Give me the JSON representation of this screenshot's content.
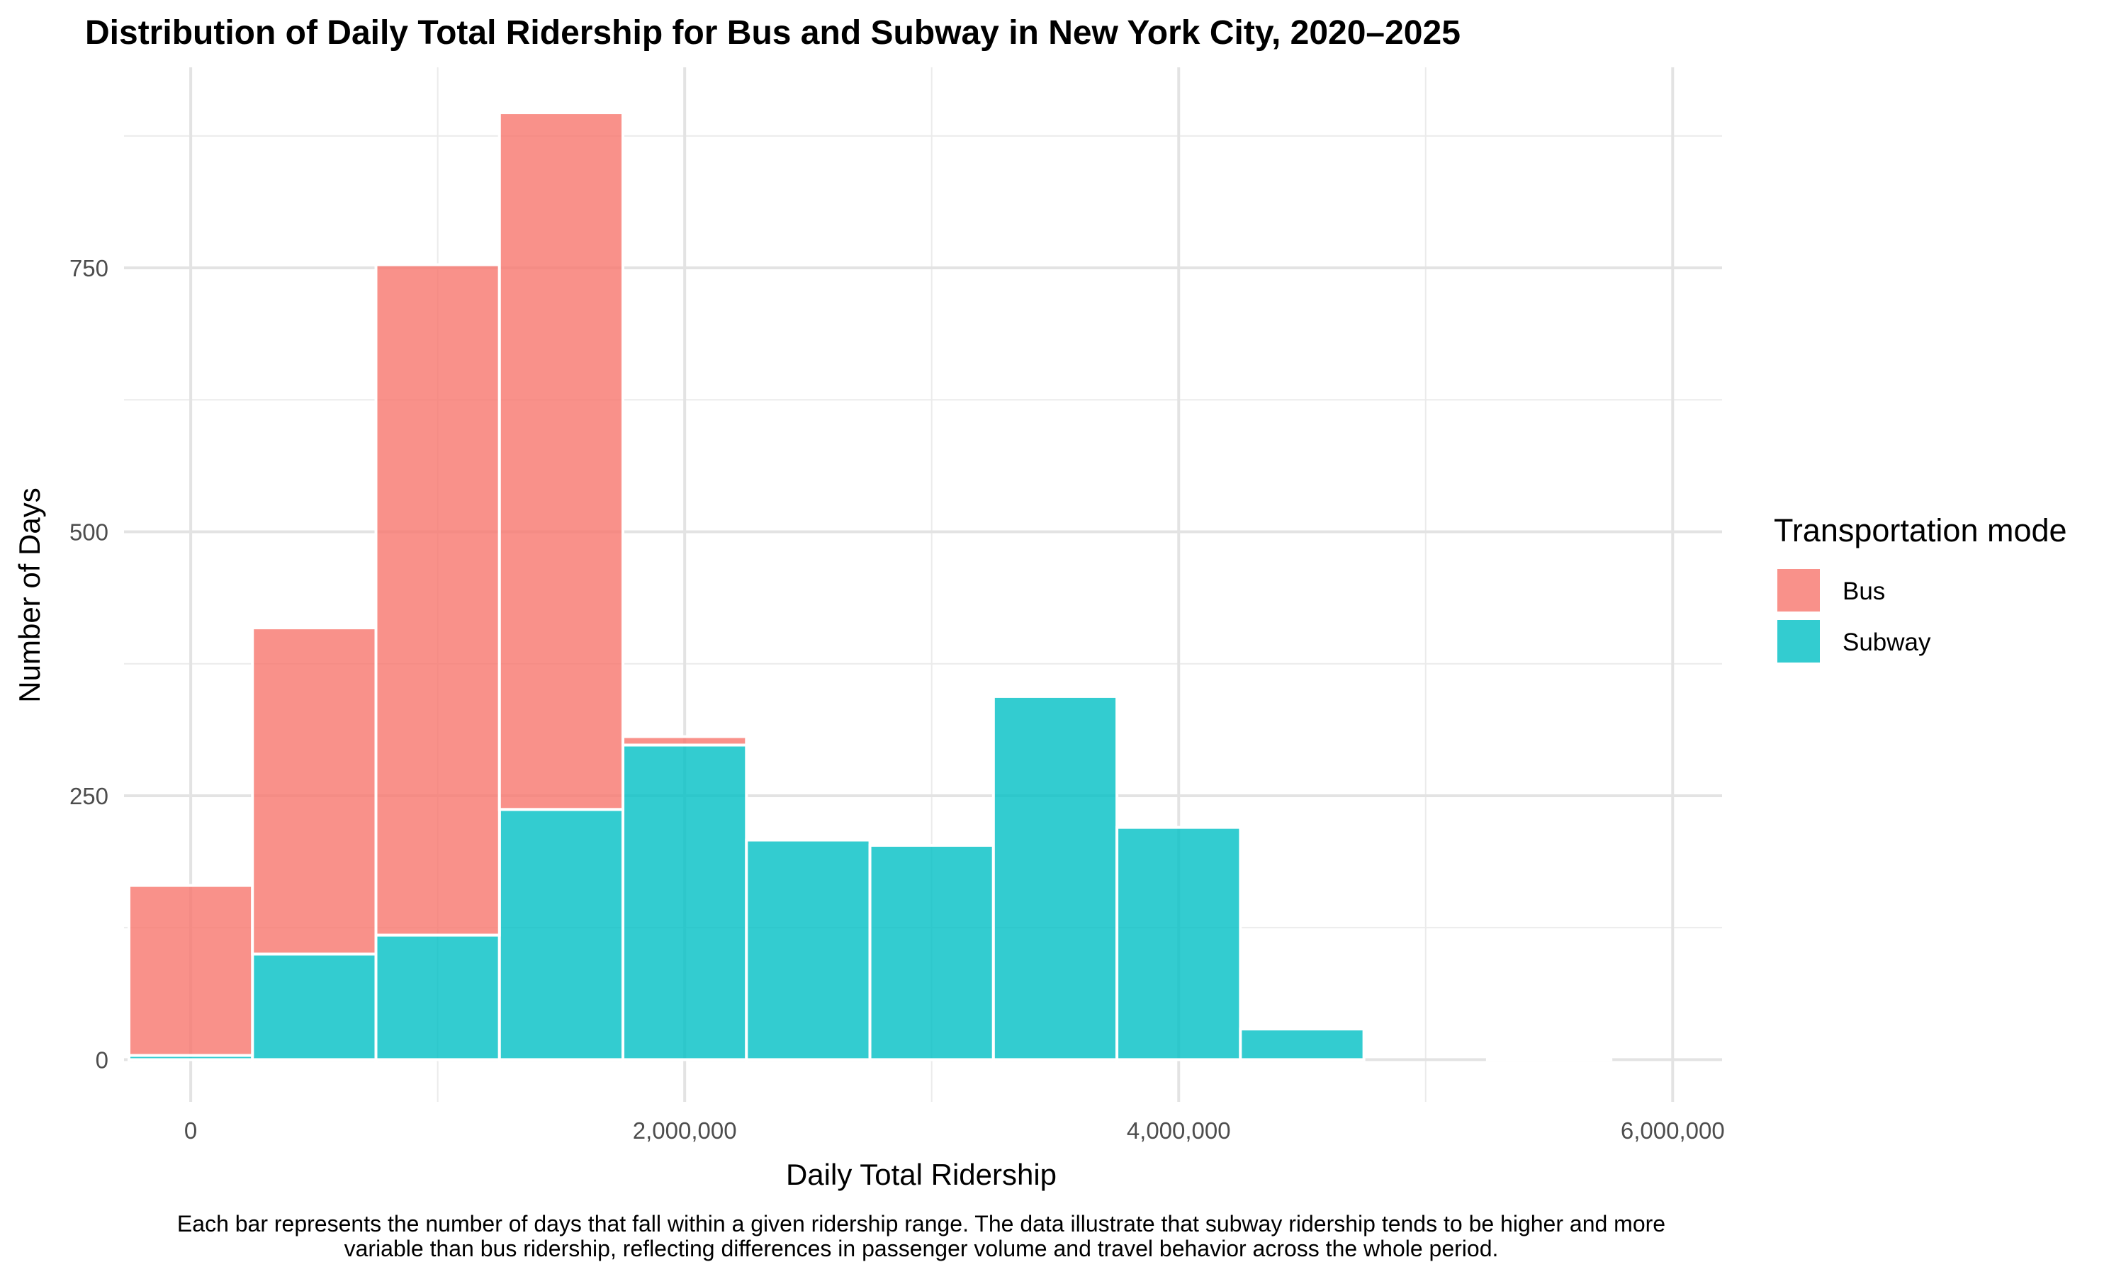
{
  "chart_data": {
    "type": "histogram",
    "title": "Distribution of Daily Total Ridership for Bus and Subway in New York City, 2020–2025",
    "xlabel": "Daily Total Ridership",
    "ylabel": "Number of Days",
    "caption_lines": [
      "Each bar represents the number of days that fall within a given ridership range. The data illustrate that subway ridership tends to be higher and more",
      "variable than bus ridership, reflecting differences in passenger volume and travel behavior across the whole period."
    ],
    "bin_width": 500000,
    "bin_centers": [
      0,
      500000,
      1000000,
      1500000,
      2000000,
      2500000,
      3000000,
      3500000,
      4000000,
      4500000,
      5000000,
      5500000
    ],
    "stacked": true,
    "series": [
      {
        "name": "Subway",
        "color": "#00BFC4",
        "values": [
          4,
          100,
          118,
          237,
          298,
          208,
          203,
          344,
          220,
          29,
          0,
          2
        ]
      },
      {
        "name": "Bus",
        "color": "#F8766D",
        "values": [
          161,
          309,
          635,
          660,
          8,
          0,
          0,
          0,
          0,
          0,
          0,
          0
        ]
      }
    ],
    "xlim": [
      -270000,
      6200000
    ],
    "ylim": [
      -40,
      940
    ],
    "x_ticks": [
      0,
      2000000,
      4000000,
      6000000
    ],
    "x_tick_labels": [
      "0",
      "2,000,000",
      "4,000,000",
      "6,000,000"
    ],
    "y_ticks": [
      0,
      250,
      500,
      750
    ],
    "y_tick_labels": [
      "0",
      "250",
      "500",
      "750"
    ],
    "grid": true,
    "legend": {
      "title": "Transportation mode",
      "position": "right",
      "items": [
        {
          "label": "Bus",
          "color": "#F8766D"
        },
        {
          "label": "Subway",
          "color": "#00BFC4"
        }
      ]
    }
  }
}
